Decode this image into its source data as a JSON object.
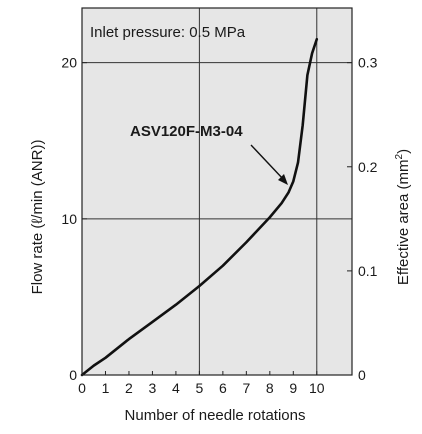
{
  "chart_data": {
    "type": "line",
    "title": "",
    "annotation": "Inlet pressure: 0.5 MPa",
    "xlabel": "Number of needle rotations",
    "ylabel_left": "Flow rate (ℓ/min (ANR))",
    "ylabel_right_base": "Effective area (mm",
    "ylabel_right_sup": "2",
    "ylabel_right_close": ")",
    "xlim": [
      0,
      11.5
    ],
    "ylim_left": [
      0,
      23.5
    ],
    "ylim_right": [
      0,
      0.3525
    ],
    "x_ticks": [
      "0",
      "1",
      "2",
      "3",
      "4",
      "5",
      "6",
      "7",
      "8",
      "9",
      "10"
    ],
    "y_left_ticks": [
      "0",
      "10",
      "20"
    ],
    "y_right_ticks": [
      "0",
      "0.1",
      "0.2",
      "0.3"
    ],
    "grid": true,
    "plot_background": "#e6e6e6",
    "line_color": "#111111",
    "series": [
      {
        "name": "ASV120F-M3-04",
        "x": [
          0,
          0.5,
          1,
          2,
          3,
          4,
          5,
          6,
          7,
          7.5,
          8,
          8.5,
          8.8,
          9.0,
          9.2,
          9.4,
          9.6,
          9.8,
          10.0
        ],
        "y": [
          0,
          0.6,
          1.1,
          2.3,
          3.4,
          4.5,
          5.7,
          7.0,
          8.5,
          9.3,
          10.1,
          11.0,
          11.7,
          12.4,
          13.6,
          16.0,
          19.2,
          20.6,
          21.5
        ]
      }
    ]
  }
}
